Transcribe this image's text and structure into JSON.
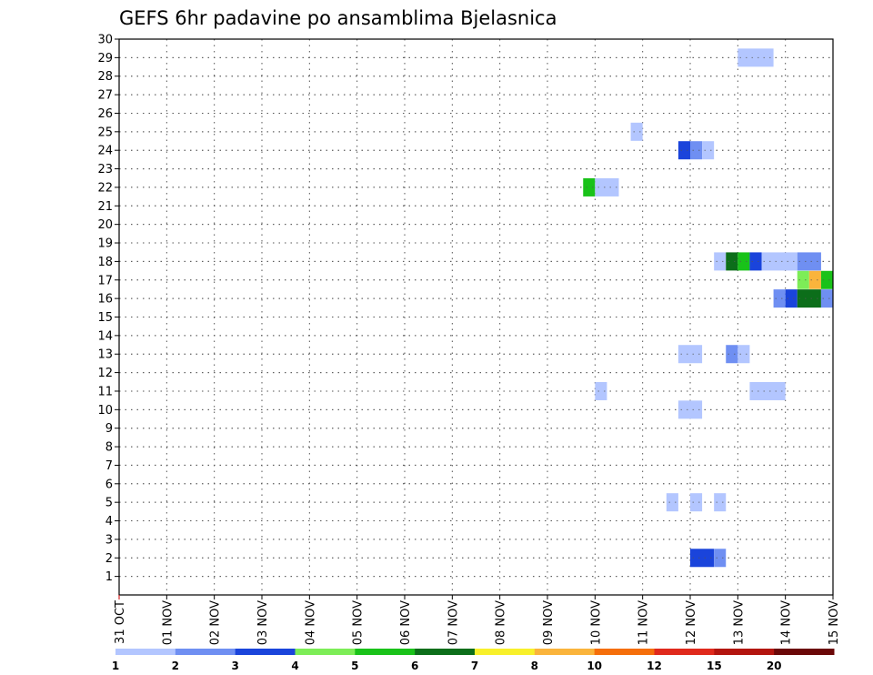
{
  "chart_data": {
    "type": "heatmap",
    "title": "GEFS 6hr padavine po ansamblima Bjelasnica",
    "x_labels": [
      "31 OCT",
      "01 NOV",
      "02 NOV",
      "03 NOV",
      "04 NOV",
      "05 NOV",
      "06 NOV",
      "07 NOV",
      "08 NOV",
      "09 NOV",
      "10 NOV",
      "11 NOV",
      "12 NOV",
      "13 NOV",
      "14 NOV",
      "15 NOV"
    ],
    "xlim": [
      0,
      15
    ],
    "y_labels": [
      "1",
      "2",
      "3",
      "4",
      "5",
      "6",
      "7",
      "8",
      "9",
      "10",
      "11",
      "12",
      "13",
      "14",
      "15",
      "16",
      "17",
      "18",
      "19",
      "20",
      "21",
      "22",
      "23",
      "24",
      "25",
      "26",
      "27",
      "28",
      "29",
      "30"
    ],
    "ylim": [
      0,
      30
    ],
    "grid": true,
    "colorbar": {
      "levels": [
        "1",
        "2",
        "3",
        "4",
        "5",
        "6",
        "7",
        "8",
        "10",
        "12",
        "15",
        "20"
      ],
      "colors": [
        "#b3c6ff",
        "#6f8ff2",
        "#1a44db",
        "#7ded57",
        "#19c219",
        "#0c6e1a",
        "#f8f02a",
        "#fab43c",
        "#f56e0a",
        "#e0291c",
        "#b3150f",
        "#6b0808"
      ]
    },
    "cells": [
      {
        "member": 29,
        "t0": 13.0,
        "t1": 13.5,
        "level": 1
      },
      {
        "member": 29,
        "t0": 13.5,
        "t1": 13.75,
        "level": 1
      },
      {
        "member": 25,
        "t0": 10.75,
        "t1": 11.0,
        "level": 1
      },
      {
        "member": 24,
        "t0": 11.75,
        "t1": 12.0,
        "level": 3
      },
      {
        "member": 24,
        "t0": 12.0,
        "t1": 12.25,
        "level": 2
      },
      {
        "member": 24,
        "t0": 12.25,
        "t1": 12.5,
        "level": 1
      },
      {
        "member": 22,
        "t0": 9.75,
        "t1": 10.0,
        "level": 5
      },
      {
        "member": 22,
        "t0": 10.0,
        "t1": 10.5,
        "level": 1
      },
      {
        "member": 18,
        "t0": 12.5,
        "t1": 12.75,
        "level": 1
      },
      {
        "member": 18,
        "t0": 12.75,
        "t1": 13.0,
        "level": 6
      },
      {
        "member": 18,
        "t0": 13.0,
        "t1": 13.25,
        "level": 5
      },
      {
        "member": 18,
        "t0": 13.25,
        "t1": 13.5,
        "level": 3
      },
      {
        "member": 18,
        "t0": 13.5,
        "t1": 14.25,
        "level": 1
      },
      {
        "member": 18,
        "t0": 14.25,
        "t1": 14.75,
        "level": 2
      },
      {
        "member": 17,
        "t0": 14.25,
        "t1": 14.5,
        "level": 4
      },
      {
        "member": 17,
        "t0": 14.5,
        "t1": 14.75,
        "level": 8
      },
      {
        "member": 17,
        "t0": 14.75,
        "t1": 15.0,
        "level": 5
      },
      {
        "member": 16,
        "t0": 13.75,
        "t1": 14.0,
        "level": 2
      },
      {
        "member": 16,
        "t0": 14.0,
        "t1": 14.25,
        "level": 3
      },
      {
        "member": 16,
        "t0": 14.25,
        "t1": 14.75,
        "level": 6
      },
      {
        "member": 16,
        "t0": 14.75,
        "t1": 15.0,
        "level": 2
      },
      {
        "member": 13,
        "t0": 11.75,
        "t1": 12.25,
        "level": 1
      },
      {
        "member": 13,
        "t0": 12.75,
        "t1": 13.0,
        "level": 2
      },
      {
        "member": 13,
        "t0": 13.0,
        "t1": 13.25,
        "level": 1
      },
      {
        "member": 11,
        "t0": 10.0,
        "t1": 10.25,
        "level": 1
      },
      {
        "member": 11,
        "t0": 13.25,
        "t1": 14.0,
        "level": 1
      },
      {
        "member": 10,
        "t0": 11.75,
        "t1": 12.25,
        "level": 1
      },
      {
        "member": 5,
        "t0": 11.5,
        "t1": 11.75,
        "level": 1
      },
      {
        "member": 5,
        "t0": 12.0,
        "t1": 12.25,
        "level": 1
      },
      {
        "member": 5,
        "t0": 12.5,
        "t1": 12.75,
        "level": 1
      },
      {
        "member": 2,
        "t0": 12.0,
        "t1": 12.5,
        "level": 3
      },
      {
        "member": 2,
        "t0": 12.5,
        "t1": 12.75,
        "level": 2
      }
    ]
  }
}
